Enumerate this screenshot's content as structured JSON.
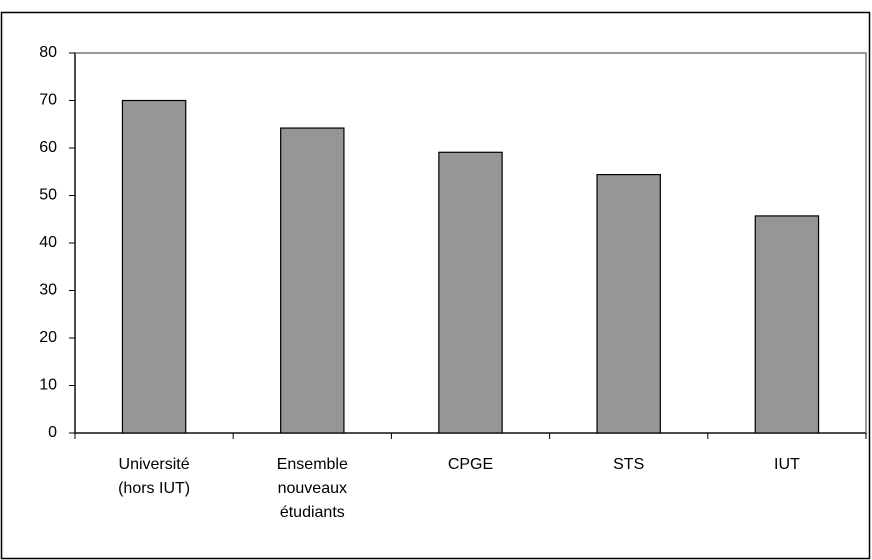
{
  "chart_data": {
    "type": "bar",
    "categories": [
      "Université\n(hors IUT)",
      "Ensemble\nnouveaux\nétudiants",
      "CPGE",
      "STS",
      "IUT"
    ],
    "values": [
      70,
      64.2,
      59.1,
      54.4,
      45.7
    ],
    "color": "#969696",
    "ylim": [
      0,
      80
    ],
    "yticks": [
      0,
      10,
      20,
      30,
      40,
      50,
      60,
      70,
      80
    ],
    "grid": false
  }
}
